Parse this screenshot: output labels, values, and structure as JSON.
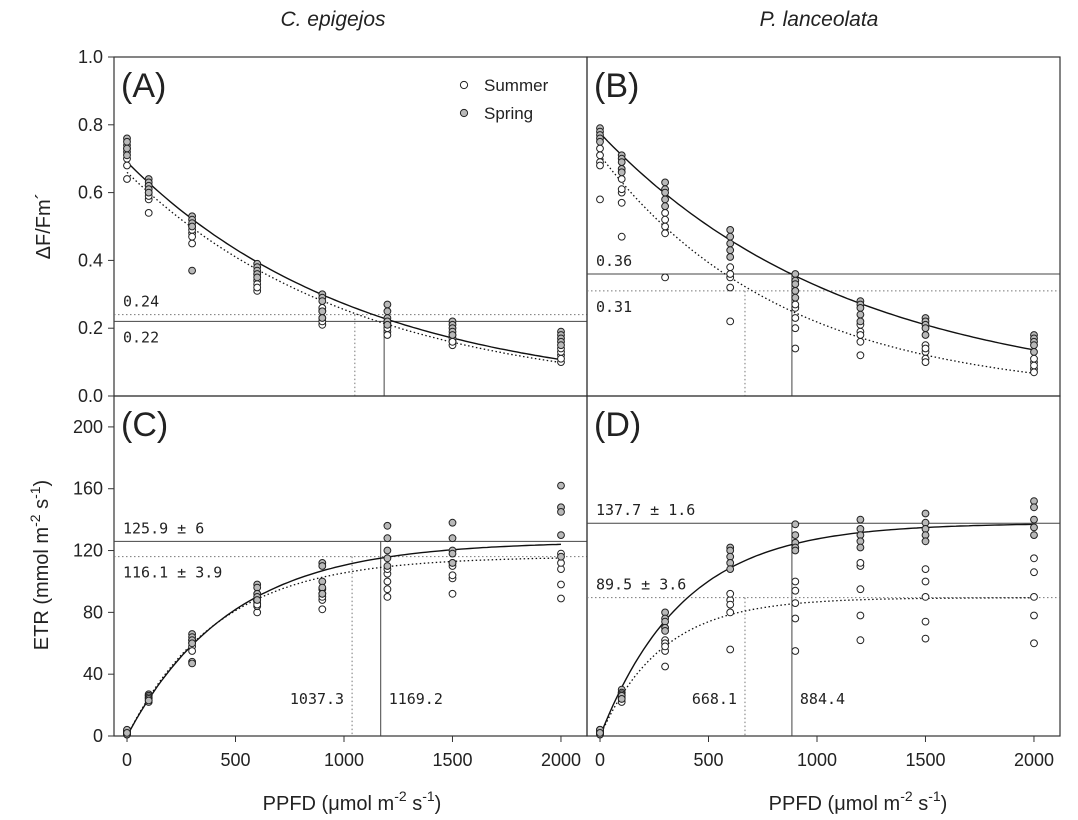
{
  "chart_data": {
    "type": "scatter",
    "columns": [
      "C. epigejos",
      "P. lanceolata"
    ],
    "xlabel": "PPFD (μmol m",
    "xlabel_sup1": "-2",
    "xlabel_mid": " s",
    "xlabel_sup2": "-1",
    "xlabel_end": ")",
    "x_ticks": [
      "0",
      "500",
      "1000",
      "1500",
      "2000"
    ],
    "xlim": [
      -60,
      2120
    ],
    "legend": {
      "position": "top-right",
      "entries": [
        {
          "name": "Summer",
          "fill": "#ffffff"
        },
        {
          "name": "Spring",
          "fill": "#b9b9b9"
        }
      ]
    },
    "colors": {
      "summer_fill": "#ffffff",
      "spring_fill": "#b9b9b9",
      "marker_stroke": "#222222"
    },
    "rows": [
      {
        "ylabel": "ΔF/Fm´",
        "ylim": [
          0,
          1.0
        ],
        "y_ticks": [
          "0.0",
          "0.2",
          "0.4",
          "0.6",
          "0.8",
          "1.0"
        ],
        "y_tick_values": [
          0,
          0.2,
          0.4,
          0.6,
          0.8,
          1.0
        ]
      },
      {
        "ylabel": "ETR (mmol m",
        "ylabel_sup1": "-2",
        "ylabel_mid": " s",
        "ylabel_sup2": "-1",
        "ylabel_end": ")",
        "ylim": [
          0,
          220
        ],
        "y_ticks": [
          "0",
          "40",
          "80",
          "120",
          "160",
          "200"
        ],
        "y_tick_values": [
          0,
          40,
          80,
          120,
          160,
          200
        ]
      }
    ],
    "panels": [
      {
        "id": "A",
        "label": "(A)",
        "row": 0,
        "col": 0,
        "show_legend": true,
        "x": [
          0,
          100,
          300,
          600,
          900,
          1200,
          1500,
          2000
        ],
        "series": [
          {
            "name": "Summer",
            "curve": {
              "form": "exp_decay",
              "a": 0.66,
              "k": 0.00095
            },
            "points": [
              [
                0.72,
                0.7,
                0.68,
                0.73,
                0.64
              ],
              [
                0.62,
                0.6,
                0.58,
                0.59,
                0.54
              ],
              [
                0.5,
                0.48,
                0.45,
                0.49,
                0.47
              ],
              [
                0.34,
                0.33,
                0.31,
                0.36,
                0.32
              ],
              [
                0.25,
                0.23,
                0.21,
                0.26,
                0.22
              ],
              [
                0.21,
                0.19,
                0.18,
                0.22,
                0.2
              ],
              [
                0.16,
                0.15,
                0.17,
                0.18,
                0.16
              ],
              [
                0.12,
                0.1,
                0.11,
                0.13,
                0.14
              ]
            ]
          },
          {
            "name": "Spring",
            "curve": {
              "form": "exp_decay",
              "a": 0.69,
              "k": 0.00093
            },
            "points": [
              [
                0.76,
                0.74,
                0.75,
                0.73,
                0.71
              ],
              [
                0.64,
                0.63,
                0.62,
                0.61,
                0.6
              ],
              [
                0.53,
                0.52,
                0.51,
                0.5,
                0.37
              ],
              [
                0.39,
                0.38,
                0.37,
                0.36,
                0.35
              ],
              [
                0.3,
                0.29,
                0.28,
                0.25,
                0.23
              ],
              [
                0.27,
                0.25,
                0.23,
                0.22,
                0.21
              ],
              [
                0.22,
                0.21,
                0.2,
                0.19,
                0.18
              ],
              [
                0.19,
                0.18,
                0.17,
                0.16,
                0.15
              ]
            ]
          }
        ],
        "hlines": [
          {
            "y": 0.24,
            "style": "dotted",
            "label": "0.24",
            "label_pos": "above"
          },
          {
            "y": 0.22,
            "style": "solid",
            "label": "0.22",
            "label_pos": "below"
          }
        ],
        "vlines": [
          {
            "x": 1050,
            "style": "dotted"
          },
          {
            "x": 1185,
            "style": "solid"
          }
        ],
        "vlabels": []
      },
      {
        "id": "B",
        "label": "(B)",
        "row": 0,
        "col": 1,
        "show_legend": false,
        "x": [
          0,
          100,
          300,
          600,
          900,
          1200,
          1500,
          2000
        ],
        "series": [
          {
            "name": "Summer",
            "curve": {
              "form": "exp_decay",
              "a": 0.71,
              "k": 0.00118
            },
            "points": [
              [
                0.73,
                0.71,
                0.69,
                0.58,
                0.68
              ],
              [
                0.64,
                0.6,
                0.57,
                0.47,
                0.61
              ],
              [
                0.54,
                0.5,
                0.48,
                0.35,
                0.52
              ],
              [
                0.38,
                0.35,
                0.32,
                0.22,
                0.36
              ],
              [
                0.26,
                0.23,
                0.2,
                0.14,
                0.27
              ],
              [
                0.19,
                0.16,
                0.12,
                0.18,
                0.21
              ],
              [
                0.15,
                0.13,
                0.11,
                0.1,
                0.14
              ],
              [
                0.1,
                0.08,
                0.07,
                0.09,
                0.11
              ]
            ]
          },
          {
            "name": "Spring",
            "curve": {
              "form": "exp_decay",
              "a": 0.775,
              "k": 0.00087
            },
            "points": [
              [
                0.79,
                0.78,
                0.77,
                0.76,
                0.75
              ],
              [
                0.71,
                0.7,
                0.69,
                0.67,
                0.66
              ],
              [
                0.63,
                0.61,
                0.6,
                0.58,
                0.56
              ],
              [
                0.49,
                0.47,
                0.45,
                0.43,
                0.41
              ],
              [
                0.36,
                0.34,
                0.33,
                0.31,
                0.29
              ],
              [
                0.28,
                0.27,
                0.26,
                0.24,
                0.22
              ],
              [
                0.23,
                0.22,
                0.21,
                0.2,
                0.18
              ],
              [
                0.18,
                0.17,
                0.16,
                0.15,
                0.13
              ]
            ]
          }
        ],
        "hlines": [
          {
            "y": 0.36,
            "style": "solid",
            "label": "0.36",
            "label_pos": "above"
          },
          {
            "y": 0.31,
            "style": "dotted",
            "label": "0.31",
            "label_pos": "below"
          }
        ],
        "vlines": [
          {
            "x": 668.1,
            "style": "dotted"
          },
          {
            "x": 884.4,
            "style": "solid"
          }
        ],
        "vlabels": []
      },
      {
        "id": "C",
        "label": "(C)",
        "row": 1,
        "col": 0,
        "show_legend": false,
        "x": [
          0,
          100,
          300,
          600,
          900,
          1200,
          1500,
          2000
        ],
        "series": [
          {
            "name": "Summer",
            "curve": {
              "form": "exp_rise",
              "pmax": 116.1,
              "k": 0.0024
            },
            "points": [
              [
                1,
                2,
                3,
                2,
                1
              ],
              [
                23,
                25,
                26,
                24,
                22
              ],
              [
                48,
                60,
                62,
                58,
                55
              ],
              [
                80,
                84,
                86,
                88,
                85
              ],
              [
                82,
                88,
                90,
                95,
                92
              ],
              [
                90,
                95,
                100,
                105,
                108
              ],
              [
                92,
                102,
                104,
                110,
                112
              ],
              [
                89,
                98,
                108,
                112,
                118
              ]
            ]
          },
          {
            "name": "Spring",
            "curve": {
              "form": "exp_rise",
              "pmax": 125.9,
              "k": 0.0021
            },
            "points": [
              [
                3,
                2,
                1,
                4,
                2
              ],
              [
                27,
                26,
                25,
                24,
                23
              ],
              [
                66,
                64,
                62,
                60,
                47
              ],
              [
                98,
                96,
                92,
                90,
                88
              ],
              [
                112,
                110,
                100,
                96,
                92
              ],
              [
                136,
                128,
                120,
                115,
                110
              ],
              [
                138,
                128,
                120,
                118,
                112
              ],
              [
                162,
                148,
                145,
                130,
                116
              ]
            ]
          }
        ],
        "hlines": [
          {
            "y": 125.9,
            "style": "solid",
            "label": "125.9 ± 6",
            "label_pos": "above"
          },
          {
            "y": 116.1,
            "style": "dotted",
            "label": "116.1 ± 3.9",
            "label_pos": "below"
          }
        ],
        "vlines": [
          {
            "x": 1037.3,
            "style": "dotted"
          },
          {
            "x": 1169.2,
            "style": "solid"
          }
        ],
        "vlabels": [
          {
            "text": "1037.3",
            "x": 1037.3,
            "side": "left"
          },
          {
            "text": "1169.2",
            "x": 1169.2,
            "side": "right"
          }
        ]
      },
      {
        "id": "D",
        "label": "(D)",
        "row": 1,
        "col": 1,
        "show_legend": false,
        "x": [
          0,
          100,
          300,
          600,
          900,
          1200,
          1500,
          2000
        ],
        "series": [
          {
            "name": "Summer",
            "curve": {
              "form": "exp_rise",
              "pmax": 89.5,
              "k": 0.0035
            },
            "points": [
              [
                1,
                2,
                3,
                2,
                4
              ],
              [
                22,
                24,
                26,
                25,
                28
              ],
              [
                45,
                55,
                62,
                60,
                58
              ],
              [
                56,
                80,
                88,
                92,
                85
              ],
              [
                55,
                76,
                86,
                94,
                100
              ],
              [
                62,
                78,
                95,
                110,
                112
              ],
              [
                63,
                74,
                90,
                100,
                108
              ],
              [
                60,
                78,
                90,
                106,
                115
              ]
            ]
          },
          {
            "name": "Spring",
            "curve": {
              "form": "exp_rise",
              "pmax": 137.7,
              "k": 0.0026
            },
            "points": [
              [
                3,
                2,
                1,
                4,
                2
              ],
              [
                30,
                28,
                27,
                26,
                24
              ],
              [
                80,
                76,
                74,
                70,
                68
              ],
              [
                122,
                120,
                116,
                112,
                108
              ],
              [
                137,
                130,
                125,
                122,
                120
              ],
              [
                140,
                134,
                130,
                126,
                122
              ],
              [
                144,
                138,
                134,
                130,
                126
              ],
              [
                152,
                148,
                140,
                135,
                130
              ]
            ]
          }
        ],
        "hlines": [
          {
            "y": 137.7,
            "style": "solid",
            "label": "137.7 ± 1.6",
            "label_pos": "above"
          },
          {
            "y": 89.5,
            "style": "dotted",
            "label": "89.5 ± 3.6",
            "label_pos": "above"
          }
        ],
        "vlines": [
          {
            "x": 668.1,
            "style": "dotted"
          },
          {
            "x": 884.4,
            "style": "solid"
          }
        ],
        "vlabels": [
          {
            "text": "668.1",
            "x": 668.1,
            "side": "left"
          },
          {
            "text": "884.4",
            "x": 884.4,
            "side": "right"
          }
        ]
      }
    ]
  }
}
